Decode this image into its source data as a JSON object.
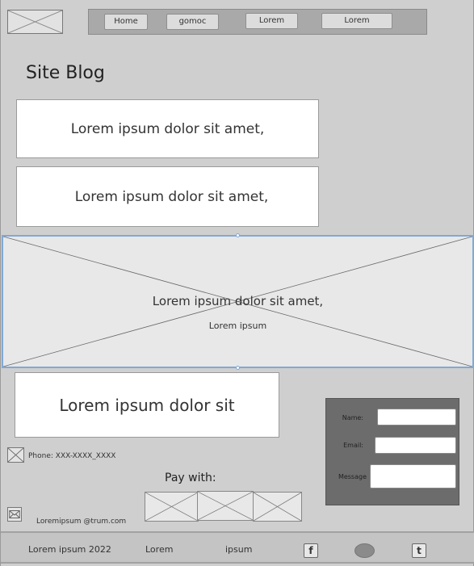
{
  "nav": {
    "items": [
      {
        "label": "Home"
      },
      {
        "label": "gomoc"
      },
      {
        "label": "Lorem"
      },
      {
        "label": "Lorem"
      }
    ]
  },
  "page": {
    "title": "Site Blog"
  },
  "blog_cards": [
    {
      "text": "Lorem ipsum dolor sit amet,"
    },
    {
      "text": "Lorem ipsum dolor sit amet,"
    }
  ],
  "hero": {
    "title": "Lorem ipsum dolor sit amet,",
    "subtitle": "Lorem ipsum"
  },
  "feature": {
    "text": "Lorem ipsum dolor sit"
  },
  "contact": {
    "phone": "Phone: XXX-XXXX_XXXX",
    "email": "Loremipsum @trum.com"
  },
  "payment": {
    "label": "Pay with:"
  },
  "form": {
    "name_label": "Name:",
    "email_label": "Email:",
    "message_label": "Message",
    "name_value": "",
    "email_value": "",
    "message_value": ""
  },
  "footer": {
    "copyright": "Lorem ipsum 2022",
    "link1": "Lorem",
    "link2": "ipsum",
    "icons": [
      "facebook-icon",
      "circle-icon",
      "twitter-icon"
    ]
  },
  "colors": {
    "page_bg": "#cfcfcf",
    "nav_bg": "#a9a9a9",
    "form_bg": "#6c6c6c",
    "selection": "#7fa9d6",
    "footer_bg": "#c4c4c4"
  }
}
